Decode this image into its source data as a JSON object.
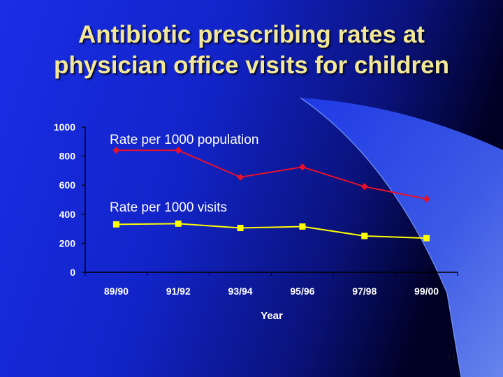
{
  "slide": {
    "title_line1": "Antibiotic prescribing rates at",
    "title_line2": "physician office visits for children",
    "page_number": "13",
    "colors": {
      "background_dark": "#000033",
      "background_blue": "#1326d8",
      "swoosh_light": "#5a7cf2",
      "title": "#f2e896"
    }
  },
  "chart_data": {
    "type": "line",
    "categories": [
      "89/90",
      "91/92",
      "93/94",
      "95/96",
      "97/98",
      "99/00"
    ],
    "series": [
      {
        "name": "Rate per 1000 population",
        "values": [
          840,
          840,
          655,
          725,
          590,
          505
        ],
        "color": "#e8102a",
        "marker": "diamond"
      },
      {
        "name": "Rate per 1000 visits",
        "values": [
          330,
          335,
          305,
          315,
          250,
          235
        ],
        "color": "#ffff00",
        "marker": "square"
      }
    ],
    "y_ticks": [
      "0",
      "200",
      "400",
      "600",
      "800",
      "1000"
    ],
    "xlabel": "Year",
    "ylabel": "",
    "ylim": [
      0,
      1000
    ],
    "grid": false,
    "legend": "inline labels above each series"
  }
}
